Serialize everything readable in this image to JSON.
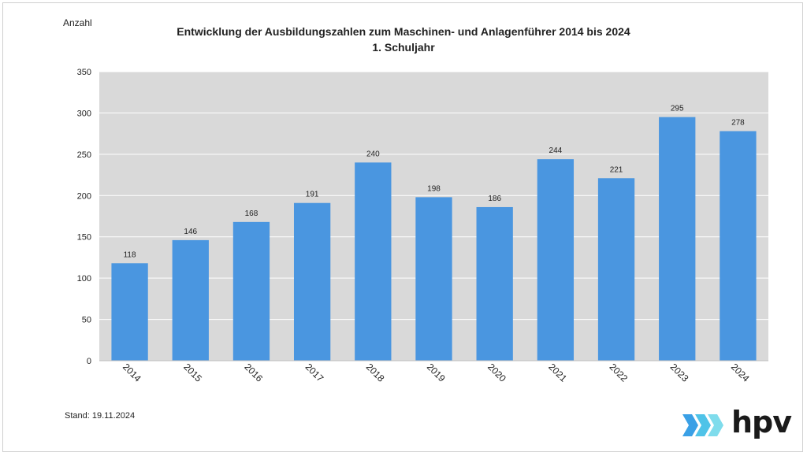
{
  "chart_data": {
    "type": "bar",
    "title": "Entwicklung der Ausbildungszahlen zum Maschinen- und Anlagenführer 2014 bis 2024",
    "subtitle": "1. Schuljahr",
    "ylabel": "Anzahl",
    "xlabel": "",
    "categories": [
      "2014",
      "2015",
      "2016",
      "2017",
      "2018",
      "2019",
      "2020",
      "2021",
      "2022",
      "2023",
      "2024"
    ],
    "values": [
      118,
      146,
      168,
      191,
      240,
      198,
      186,
      244,
      221,
      295,
      278
    ],
    "ylim": [
      0,
      350
    ],
    "yticks": [
      0,
      50,
      100,
      150,
      200,
      250,
      300,
      350
    ],
    "grid": true,
    "bar_color": "#4a96e0",
    "plot_background": "#d9d9d9"
  },
  "footer": {
    "stand": "Stand: 19.11.2024"
  },
  "logo": {
    "text": "hpv",
    "colors": [
      "#3aa0e6",
      "#4fc3e8",
      "#7fdcec"
    ]
  }
}
